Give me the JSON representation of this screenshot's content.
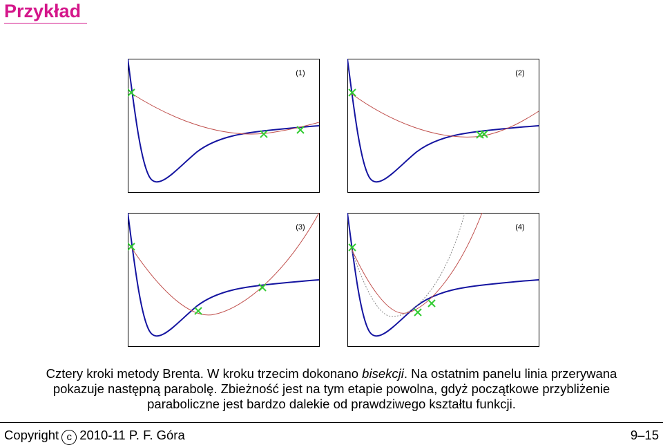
{
  "slide": {
    "title": "Przykład"
  },
  "panels": [
    {
      "label": "(1)"
    },
    {
      "label": "(2)"
    },
    {
      "label": "(3)"
    },
    {
      "label": "(4)"
    }
  ],
  "caption": {
    "line1_a": "Cztery kroki metody Brenta. W kroku trzecim dokonano ",
    "line1_em": "bisekcji",
    "line1_b": ". Na ostatnim panelu linia przerywana",
    "line2": "pokazuje następną parabolę. Zbieżność jest na tym etapie powolna, gdyż początkowe przybliżenie",
    "line3": "paraboliczne jest bardzo dalekie od prawdziwego kształtu funkcji."
  },
  "footer": {
    "copyright_word": "Copyright",
    "copyright_symbol": "c",
    "copyright_rest": "2010-11 P. F. Góra",
    "page": "9–15"
  },
  "colors": {
    "title": "#d4168a",
    "function_curve": "#1414a0",
    "parabola": "#c0504d",
    "marker": "#33cc33",
    "dotted": "#888888"
  }
}
